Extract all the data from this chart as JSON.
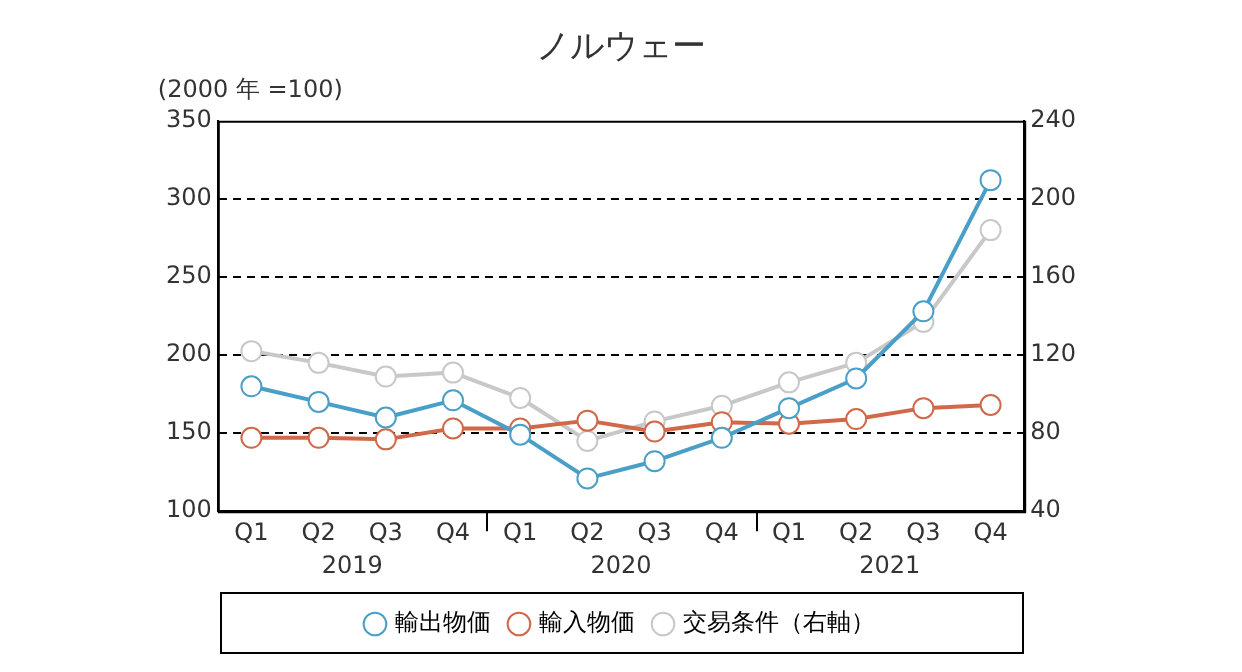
{
  "chart_data": {
    "type": "line",
    "title": "ノルウェー",
    "ylabel": "(2000 年 =100)",
    "categories": [
      "Q1",
      "Q2",
      "Q3",
      "Q4",
      "Q1",
      "Q2",
      "Q3",
      "Q4",
      "Q1",
      "Q2",
      "Q3",
      "Q4"
    ],
    "annotations": [
      "2019",
      "2020",
      "2021"
    ],
    "series": [
      {
        "name": "輸出物価",
        "color": "#4a9fc8",
        "values": [
          180,
          170,
          160,
          171,
          149,
          121,
          132,
          147,
          166,
          185,
          228,
          312
        ]
      },
      {
        "name": "輸入物価",
        "color": "#d0684a",
        "values": [
          147,
          147,
          146,
          153,
          153,
          158,
          151,
          157,
          156,
          159,
          166,
          168
        ]
      },
      {
        "name": "交易条件（右軸）",
        "color": "#c8c8c8",
        "axis": "y2",
        "values": [
          122,
          116,
          109,
          111,
          98,
          76,
          86,
          94,
          106,
          116,
          137,
          184
        ]
      }
    ],
    "ylim": [
      100,
      350
    ],
    "yticks": [
      100,
      150,
      200,
      250,
      300,
      350
    ],
    "y2lim": [
      40,
      240
    ],
    "y2ticks": [
      40,
      80,
      120,
      160,
      200,
      240
    ],
    "grid": "y",
    "legend": "bottom",
    "marker": "circle",
    "line_style": "solid"
  }
}
